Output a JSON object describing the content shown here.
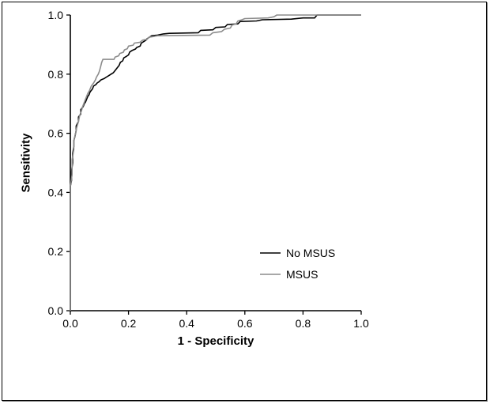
{
  "frame": {
    "background": "#ffffff",
    "border_color": "#000000"
  },
  "chart_data": {
    "type": "line",
    "subtype": "roc-curve",
    "title": "",
    "xlabel": "1 - Specificity",
    "ylabel": "Sensitivity",
    "xlim": [
      0,
      1
    ],
    "ylim": [
      0,
      1
    ],
    "x_ticks": [
      "0.0",
      "0.2",
      "0.4",
      "0.6",
      "0.8",
      "1.0"
    ],
    "y_ticks": [
      "0.0",
      "0.2",
      "0.4",
      "0.6",
      "0.8",
      "1.0"
    ],
    "grid": false,
    "axis_color": "#000000",
    "legend": {
      "position": "inside-bottom-right",
      "entries": [
        "No MSUS",
        "MSUS"
      ]
    },
    "series": [
      {
        "name": "No MSUS",
        "color": "#000000",
        "points": [
          [
            0.0,
            0.0
          ],
          [
            0.0,
            0.42
          ],
          [
            0.004,
            0.44
          ],
          [
            0.004,
            0.47
          ],
          [
            0.008,
            0.5
          ],
          [
            0.008,
            0.53
          ],
          [
            0.012,
            0.555
          ],
          [
            0.012,
            0.575
          ],
          [
            0.016,
            0.59
          ],
          [
            0.02,
            0.61
          ],
          [
            0.02,
            0.625
          ],
          [
            0.028,
            0.64
          ],
          [
            0.028,
            0.655
          ],
          [
            0.036,
            0.665
          ],
          [
            0.036,
            0.68
          ],
          [
            0.044,
            0.69
          ],
          [
            0.048,
            0.7
          ],
          [
            0.052,
            0.705
          ],
          [
            0.056,
            0.715
          ],
          [
            0.06,
            0.725
          ],
          [
            0.064,
            0.73
          ],
          [
            0.068,
            0.74
          ],
          [
            0.076,
            0.75
          ],
          [
            0.08,
            0.76
          ],
          [
            0.088,
            0.765
          ],
          [
            0.092,
            0.77
          ],
          [
            0.1,
            0.775
          ],
          [
            0.104,
            0.78
          ],
          [
            0.116,
            0.785
          ],
          [
            0.124,
            0.79
          ],
          [
            0.132,
            0.795
          ],
          [
            0.14,
            0.8
          ],
          [
            0.148,
            0.805
          ],
          [
            0.156,
            0.815
          ],
          [
            0.164,
            0.825
          ],
          [
            0.168,
            0.83
          ],
          [
            0.172,
            0.84
          ],
          [
            0.18,
            0.845
          ],
          [
            0.184,
            0.855
          ],
          [
            0.192,
            0.86
          ],
          [
            0.2,
            0.865
          ],
          [
            0.204,
            0.875
          ],
          [
            0.212,
            0.88
          ],
          [
            0.224,
            0.885
          ],
          [
            0.228,
            0.89
          ],
          [
            0.24,
            0.895
          ],
          [
            0.244,
            0.905
          ],
          [
            0.252,
            0.91
          ],
          [
            0.26,
            0.915
          ],
          [
            0.264,
            0.92
          ],
          [
            0.272,
            0.925
          ],
          [
            0.28,
            0.93
          ],
          [
            0.3,
            0.932
          ],
          [
            0.32,
            0.936
          ],
          [
            0.34,
            0.938
          ],
          [
            0.44,
            0.94
          ],
          [
            0.448,
            0.948
          ],
          [
            0.49,
            0.95
          ],
          [
            0.5,
            0.958
          ],
          [
            0.532,
            0.96
          ],
          [
            0.54,
            0.968
          ],
          [
            0.576,
            0.97
          ],
          [
            0.584,
            0.978
          ],
          [
            0.64,
            0.98
          ],
          [
            0.66,
            0.984
          ],
          [
            0.76,
            0.986
          ],
          [
            0.8,
            0.99
          ],
          [
            0.84,
            0.99
          ],
          [
            0.848,
            1.0
          ],
          [
            1.0,
            1.0
          ]
        ]
      },
      {
        "name": "MSUS",
        "color": "#8c8c8c",
        "points": [
          [
            0.0,
            0.0
          ],
          [
            0.0,
            0.42
          ],
          [
            0.006,
            0.46
          ],
          [
            0.006,
            0.51
          ],
          [
            0.012,
            0.545
          ],
          [
            0.012,
            0.575
          ],
          [
            0.018,
            0.6
          ],
          [
            0.022,
            0.62
          ],
          [
            0.028,
            0.64
          ],
          [
            0.032,
            0.66
          ],
          [
            0.038,
            0.675
          ],
          [
            0.042,
            0.69
          ],
          [
            0.048,
            0.705
          ],
          [
            0.054,
            0.72
          ],
          [
            0.06,
            0.735
          ],
          [
            0.066,
            0.745
          ],
          [
            0.072,
            0.76
          ],
          [
            0.08,
            0.77
          ],
          [
            0.086,
            0.78
          ],
          [
            0.09,
            0.79
          ],
          [
            0.096,
            0.8
          ],
          [
            0.1,
            0.81
          ],
          [
            0.104,
            0.825
          ],
          [
            0.108,
            0.84
          ],
          [
            0.112,
            0.85
          ],
          [
            0.15,
            0.85
          ],
          [
            0.154,
            0.858
          ],
          [
            0.166,
            0.862
          ],
          [
            0.17,
            0.87
          ],
          [
            0.182,
            0.874
          ],
          [
            0.186,
            0.882
          ],
          [
            0.196,
            0.886
          ],
          [
            0.2,
            0.895
          ],
          [
            0.216,
            0.898
          ],
          [
            0.22,
            0.905
          ],
          [
            0.24,
            0.908
          ],
          [
            0.248,
            0.915
          ],
          [
            0.264,
            0.918
          ],
          [
            0.27,
            0.925
          ],
          [
            0.29,
            0.928
          ],
          [
            0.3,
            0.93
          ],
          [
            0.48,
            0.932
          ],
          [
            0.49,
            0.94
          ],
          [
            0.52,
            0.944
          ],
          [
            0.53,
            0.952
          ],
          [
            0.55,
            0.956
          ],
          [
            0.556,
            0.966
          ],
          [
            0.57,
            0.97
          ],
          [
            0.576,
            0.98
          ],
          [
            0.59,
            0.984
          ],
          [
            0.6,
            0.988
          ],
          [
            0.68,
            0.99
          ],
          [
            0.7,
            0.994
          ],
          [
            0.71,
            1.0
          ],
          [
            1.0,
            1.0
          ]
        ]
      }
    ]
  }
}
